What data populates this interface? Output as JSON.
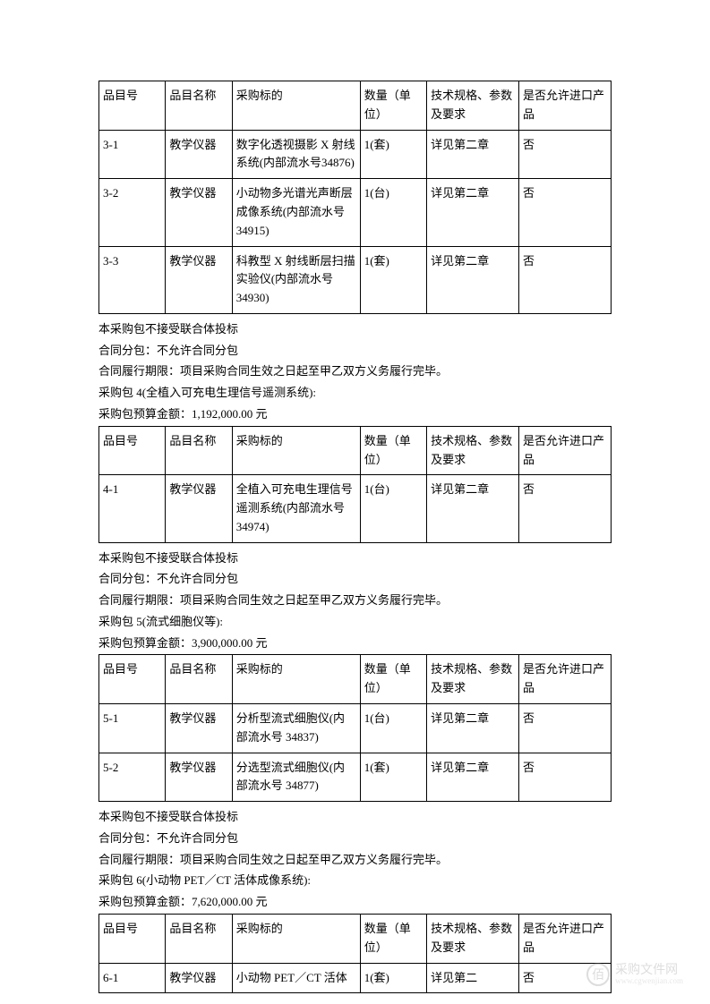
{
  "sections": [
    {
      "table": {
        "columns": [
          "品目号",
          "品目名称",
          "采购标的",
          "数量（单位）",
          "技术规格、参数及要求",
          "是否允许进口产品"
        ],
        "rows": [
          [
            "3-1",
            "教学仪器",
            "数字化透视摄影 X 射线系统(内部流水号34876)",
            "1(套)",
            "详见第二章",
            "否"
          ],
          [
            "3-2",
            "教学仪器",
            "小动物多光谱光声断层成像系统(内部流水号 34915)",
            "1(台)",
            "详见第二章",
            "否"
          ],
          [
            "3-3",
            "教学仪器",
            "科教型 X 射线断层扫描实验仪(内部流水号34930)",
            "1(套)",
            "详见第二章",
            "否"
          ]
        ]
      },
      "notes": [
        "本采购包不接受联合体投标",
        "合同分包：不允许合同分包",
        "合同履行期限：项目采购合同生效之日起至甲乙双方义务履行完毕。",
        "采购包 4(全植入可充电生理信号遥测系统):",
        "采购包预算金额：1,192,000.00 元"
      ]
    },
    {
      "table": {
        "columns": [
          "品目号",
          "品目名称",
          "采购标的",
          "数量（单位）",
          "技术规格、参数及要求",
          "是否允许进口产品"
        ],
        "rows": [
          [
            "4-1",
            "教学仪器",
            "全植入可充电生理信号遥测系统(内部流水号 34974)",
            "1(台)",
            "详见第二章",
            "否"
          ]
        ]
      },
      "notes": [
        "本采购包不接受联合体投标",
        "合同分包：不允许合同分包",
        "合同履行期限：项目采购合同生效之日起至甲乙双方义务履行完毕。",
        "采购包 5(流式细胞仪等):",
        "采购包预算金额：3,900,000.00 元"
      ]
    },
    {
      "table": {
        "columns": [
          "品目号",
          "品目名称",
          "采购标的",
          "数量（单位）",
          "技术规格、参数及要求",
          "是否允许进口产品"
        ],
        "rows": [
          [
            "5-1",
            "教学仪器",
            "分析型流式细胞仪(内部流水号 34837)",
            "1(台)",
            "详见第二章",
            "否"
          ],
          [
            "5-2",
            "教学仪器",
            "分选型流式细胞仪(内部流水号 34877)",
            "1(套)",
            "详见第二章",
            "否"
          ]
        ]
      },
      "notes": [
        "本采购包不接受联合体投标",
        "合同分包：不允许合同分包",
        "合同履行期限：项目采购合同生效之日起至甲乙双方义务履行完毕。",
        "采购包 6(小动物 PET／CT 活体成像系统):",
        "采购包预算金额：7,620,000.00 元"
      ]
    },
    {
      "table": {
        "columns": [
          "品目号",
          "品目名称",
          "采购标的",
          "数量（单位）",
          "技术规格、参数及要求",
          "是否允许进口产品"
        ],
        "rows": [
          [
            "6-1",
            "教学仪器",
            "小动物 PET／CT 活体",
            "1(套)",
            "详见第二",
            "否"
          ]
        ]
      },
      "notes": []
    }
  ],
  "watermark": {
    "icon": "佰",
    "main": "采购文件网",
    "sub": "www.cgwenjian.com"
  },
  "styling": {
    "body_bg": "#ffffff",
    "text_color": "#000000",
    "border_color": "#000000",
    "font_size_pt": 10,
    "watermark_color": "#888888"
  }
}
